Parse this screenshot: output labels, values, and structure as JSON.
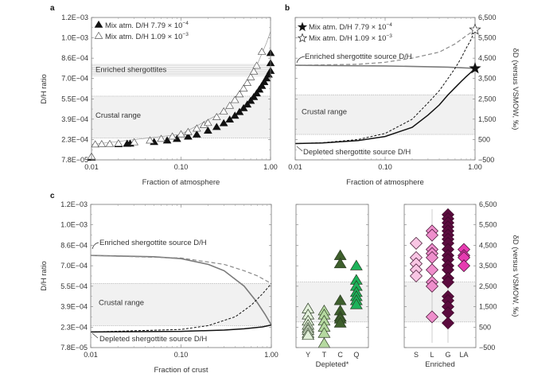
{
  "figure": {
    "panel_labels": [
      "a",
      "b",
      "c"
    ]
  },
  "chart_data": [
    {
      "panel": "a",
      "type": "scatter",
      "xlabel": "Fraction of atmosphere",
      "ylabel": "D/H ratio",
      "xscale": "log",
      "xlim": [
        0.01,
        1.0
      ],
      "ylim": [
        7.8e-05,
        0.0012
      ],
      "xticks": [
        "0.01",
        "0.10",
        "1.00"
      ],
      "yticks": [
        "7.8E−05",
        "2.3E−04",
        "3.9E−04",
        "5.5E−04",
        "7.0E−04",
        "8.6E−04",
        "1.0E−03",
        "1.2E−03"
      ],
      "regions": {
        "enriched_label": "Enriched shergottites",
        "enriched_range": [
          0.00074,
          0.00083
        ],
        "crustal_label": "Crustal range",
        "crustal_range": [
          0.00025,
          0.00058
        ]
      },
      "series": [
        {
          "legend": "Mix atm. D/H 7.79 × 10",
          "exp": "−4",
          "marker": "filled-triangle",
          "x": [
            0.01,
            0.02,
            0.025,
            0.027,
            0.05,
            0.07,
            0.09,
            0.12,
            0.15,
            0.2,
            0.25,
            0.3,
            0.35,
            0.4,
            0.45,
            0.5,
            0.55,
            0.6,
            0.65,
            0.7,
            0.75,
            0.8,
            0.85,
            0.9,
            0.95,
            1.0,
            1.0,
            1.0
          ],
          "y": [
            9.5e-05,
            0.000202,
            0.000205,
            0.000206,
            0.000219,
            0.000231,
            0.000243,
            0.000261,
            0.000278,
            0.000308,
            0.000337,
            0.000367,
            0.000396,
            0.000426,
            0.000455,
            0.000485,
            0.000514,
            0.000543,
            0.000573,
            0.000602,
            0.000632,
            0.000661,
            0.000691,
            0.00072,
            0.00075,
            0.000779,
            0.00084,
            0.00092
          ]
        },
        {
          "legend": "Mix atm. D/H 1.09 × 10",
          "exp": "−3",
          "marker": "open-triangle",
          "x": [
            0.01,
            0.011,
            0.013,
            0.016,
            0.02,
            0.03,
            0.045,
            0.06,
            0.08,
            0.1,
            0.12,
            0.15,
            0.18,
            0.2,
            0.25,
            0.3,
            0.35,
            0.4,
            0.45,
            0.5,
            0.55,
            0.6,
            0.65,
            0.7,
            0.8
          ],
          "y": [
            0.000105,
            0.0002,
            0.000202,
            0.000204,
            0.000208,
            0.000217,
            0.000231,
            0.000244,
            0.000262,
            0.00028,
            0.000298,
            0.000325,
            0.000352,
            0.00037,
            0.000415,
            0.00046,
            0.000505,
            0.00055,
            0.000595,
            0.00064,
            0.000685,
            0.00073,
            0.000775,
            0.00082,
            0.00093
          ]
        }
      ],
      "curves": [
        {
          "style": "thin-grey",
          "x": [
            0.01,
            0.1,
            0.3,
            0.5,
            0.7,
            0.9,
            1.0
          ],
          "y": [
            0.000199,
            0.00028,
            0.00046,
            0.00064,
            0.00082,
            0.001,
            0.00109
          ]
        }
      ]
    },
    {
      "panel": "b",
      "type": "line",
      "xlabel": "Fraction of atmosphere",
      "ylabel_right": "δD (versus VSMOW, ‰)",
      "xscale": "log",
      "xlim": [
        0.01,
        1.0
      ],
      "ylim": [
        -500,
        6500
      ],
      "xticks": [
        "0.01",
        "0.10",
        "1.00"
      ],
      "yticks_right": [
        "−500",
        "500",
        "1,500",
        "2,500",
        "3,500",
        "4,500",
        "5,500",
        "6,500"
      ],
      "regions": {
        "crustal_label": "Crustal range",
        "crustal_range": [
          750,
          2700
        ]
      },
      "annotations": [
        "Enriched shergottite source D/H",
        "Depleted shergottite source D/H"
      ],
      "legend": [
        {
          "label": "Mix atm. D/H 7.79 × 10",
          "exp": "−4",
          "marker": "filled-star",
          "value": [
            1.0,
            4000
          ]
        },
        {
          "label": "Mix atm. D/H 1.09 × 10",
          "exp": "−3",
          "marker": "open-star",
          "value": [
            1.0,
            5900
          ]
        }
      ],
      "curves": [
        {
          "style": "grey-solid",
          "x": [
            0.01,
            0.1,
            0.5,
            1.0
          ],
          "y": [
            4150,
            4120,
            4060,
            4000
          ]
        },
        {
          "style": "grey-dashed",
          "x": [
            0.01,
            0.05,
            0.1,
            0.2,
            0.4,
            0.6,
            0.8,
            1.0
          ],
          "y": [
            4150,
            4200,
            4300,
            4500,
            4800,
            5200,
            5600,
            5900
          ]
        },
        {
          "style": "black-solid",
          "x": [
            0.01,
            0.02,
            0.05,
            0.1,
            0.2,
            0.3,
            0.4,
            0.5,
            0.6,
            0.7,
            0.8,
            0.9,
            1.0
          ],
          "y": [
            300,
            330,
            450,
            650,
            1100,
            1700,
            2200,
            2700,
            3050,
            3350,
            3600,
            3800,
            4000
          ]
        },
        {
          "style": "black-dashed",
          "x": [
            0.01,
            0.02,
            0.05,
            0.1,
            0.2,
            0.3,
            0.4,
            0.5,
            0.6,
            0.7,
            0.8,
            0.9,
            1.0
          ],
          "y": [
            300,
            340,
            500,
            800,
            1500,
            2300,
            2900,
            3500,
            4000,
            4500,
            5000,
            5400,
            5900
          ]
        }
      ]
    },
    {
      "panel": "c",
      "type": "line",
      "xlabel": "Fraction of crust",
      "ylabel": "D/H ratio",
      "xscale": "log",
      "xlim": [
        0.01,
        1.0
      ],
      "ylim": [
        7.8e-05,
        0.0012
      ],
      "xticks": [
        "0.01",
        "0.10",
        "1.00"
      ],
      "yticks": [
        "7.8E−05",
        "2.3E−04",
        "3.9E−04",
        "5.5E−04",
        "7.0E−04",
        "8.6E−04",
        "1.0E−03",
        "1.2E−03"
      ],
      "regions": {
        "crustal_label": "Crustal range",
        "crustal_range": [
          0.00025,
          0.00058
        ]
      },
      "annotations": [
        "Enriched shergottite source D/H",
        "Depleted shergottite source D/H"
      ],
      "curves": [
        {
          "style": "grey-solid",
          "x": [
            0.01,
            0.05,
            0.1,
            0.2,
            0.3,
            0.5,
            0.7,
            0.85,
            1.0
          ],
          "y": [
            0.0008,
            0.00079,
            0.000775,
            0.00073,
            0.00068,
            0.00056,
            0.00043,
            0.00034,
            0.000255
          ]
        },
        {
          "style": "grey-dashed",
          "x": [
            0.01,
            0.1,
            0.3,
            0.5,
            0.7,
            1.0
          ],
          "y": [
            0.0008,
            0.00078,
            0.00073,
            0.00068,
            0.00064,
            0.00058
          ]
        },
        {
          "style": "black-solid",
          "x": [
            0.01,
            0.1,
            0.3,
            0.5,
            0.8,
            1.0
          ],
          "y": [
            0.0002,
            0.000205,
            0.000215,
            0.000225,
            0.00024,
            0.000255
          ]
        },
        {
          "style": "black-dashed",
          "x": [
            0.01,
            0.1,
            0.2,
            0.4,
            0.6,
            0.8,
            1.0
          ],
          "y": [
            0.0002,
            0.00022,
            0.00025,
            0.00032,
            0.00041,
            0.0005,
            0.00058
          ]
        }
      ]
    },
    {
      "panel": "c-depleted",
      "type": "scatter",
      "xlabel": "Depleted*",
      "ylim": [
        -500,
        6500
      ],
      "crustal_range": [
        750,
        2700
      ],
      "categories": [
        {
          "label": "Y",
          "color": "#e2f0da",
          "values": [
            1400,
            1100,
            800,
            600,
            450,
            350,
            200,
            100
          ]
        },
        {
          "label": "T",
          "color": "#b5d9a0",
          "values": [
            1300,
            1100,
            800,
            500,
            200,
            -300
          ]
        },
        {
          "label": "C",
          "color": "#3e5f2c",
          "values": [
            4000,
            3600,
            1800,
            1300,
            1000,
            900,
            700
          ]
        },
        {
          "label": "Q",
          "color": "#1db25a",
          "values": [
            3500,
            2800,
            2500,
            2200,
            2000,
            1800,
            1600
          ]
        }
      ]
    },
    {
      "panel": "c-enriched",
      "type": "scatter",
      "xlabel": "Enriched",
      "ylim": [
        -500,
        6500
      ],
      "ylabel_right": "δD (versus VSMOW, ‰)",
      "yticks_right": [
        "−500",
        "500",
        "1,500",
        "2,500",
        "3,500",
        "4,500",
        "5,500",
        "6,500"
      ],
      "crustal_range": [
        750,
        2700
      ],
      "categories": [
        {
          "label": "S",
          "color": "#f9c6e4",
          "values": [
            4600,
            3900,
            3600,
            3300,
            3000
          ]
        },
        {
          "label": "L",
          "color": "#ee8fcc",
          "values": [
            5200,
            5000,
            4300,
            4100,
            3900,
            3300,
            2700,
            2500,
            1000
          ]
        },
        {
          "label": "G",
          "color": "#5b0b3e",
          "values": [
            6000,
            5800,
            5600,
            5400,
            5200,
            5000,
            4800,
            4600,
            4300,
            4000,
            3800,
            3500,
            3300,
            2900,
            2700,
            2000,
            1800,
            1500,
            1200,
            700
          ]
        },
        {
          "label": "LA",
          "color": "#e63cb1",
          "values": [
            4300,
            4000,
            3900,
            3500
          ]
        }
      ]
    }
  ]
}
